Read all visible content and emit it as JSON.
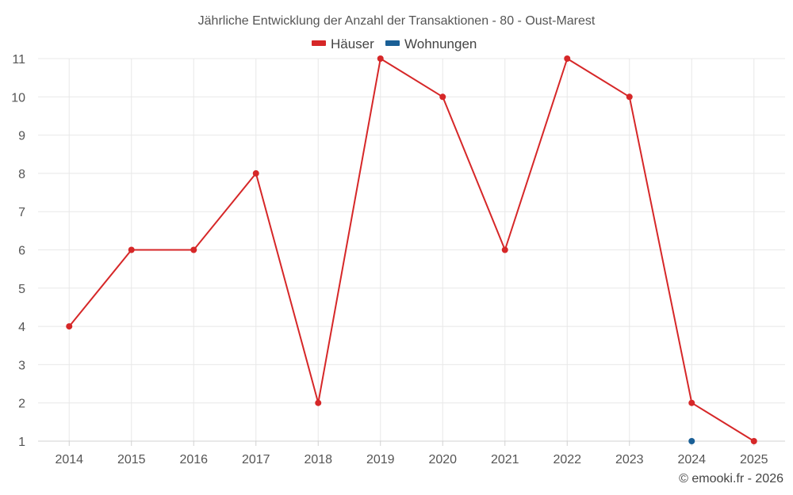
{
  "chart_data": {
    "type": "line",
    "title": "Jährliche Entwicklung der Anzahl der Transaktionen - 80 - Oust-Marest",
    "x": [
      "2014",
      "2015",
      "2016",
      "2017",
      "2018",
      "2019",
      "2020",
      "2021",
      "2022",
      "2023",
      "2024",
      "2025"
    ],
    "ylim": [
      1,
      11
    ],
    "yticks": [
      1,
      2,
      3,
      4,
      5,
      6,
      7,
      8,
      9,
      10,
      11
    ],
    "grid": true,
    "legend_position": "top-center",
    "series": [
      {
        "name": "Häuser",
        "color": "#d62728",
        "values": [
          4,
          6,
          6,
          8,
          2,
          11,
          10,
          6,
          11,
          10,
          2,
          1
        ]
      },
      {
        "name": "Wohnungen",
        "color": "#1a5f96",
        "values": [
          null,
          null,
          null,
          null,
          null,
          null,
          null,
          null,
          null,
          null,
          1,
          null
        ]
      }
    ]
  },
  "credit": "© emooki.fr - 2026"
}
